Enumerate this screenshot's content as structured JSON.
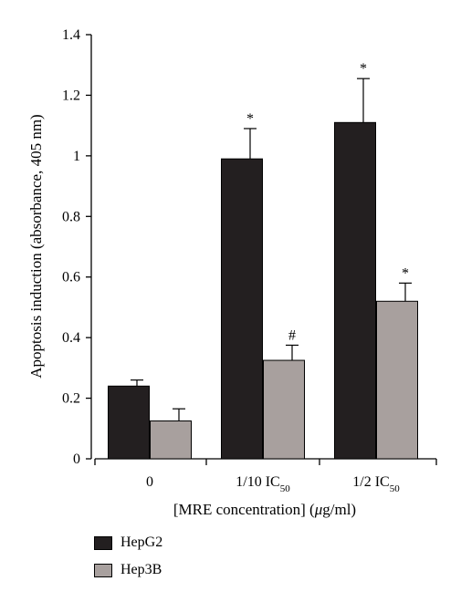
{
  "chart_data": {
    "type": "bar",
    "ylabel": "Apoptosis induction (absorbance, 405 nm)",
    "xlabel_prefix": "[MRE concentration] (",
    "xlabel_mu": "μ",
    "xlabel_suffix": "g/ml)",
    "ylim": [
      0,
      1.4
    ],
    "yticks": [
      "0",
      "0.2",
      "0.4",
      "0.6",
      "0.8",
      "1",
      "1.2",
      "1.4"
    ],
    "categories": [
      {
        "main": "0",
        "sub": ""
      },
      {
        "main": "1/10 IC",
        "sub": "50"
      },
      {
        "main": "1/2 IC",
        "sub": "50"
      }
    ],
    "series": [
      {
        "name": "HepG2",
        "color": "#231f20",
        "values": [
          0.24,
          0.99,
          1.11
        ],
        "errors": [
          0.02,
          0.1,
          0.145
        ],
        "markers": [
          "",
          "*",
          "*"
        ]
      },
      {
        "name": "Hep3B",
        "color": "#a8a09e",
        "values": [
          0.125,
          0.325,
          0.52
        ],
        "errors": [
          0.04,
          0.05,
          0.06
        ],
        "markers": [
          "",
          "#",
          "*"
        ]
      }
    ],
    "legend_position": "bottom-left"
  }
}
